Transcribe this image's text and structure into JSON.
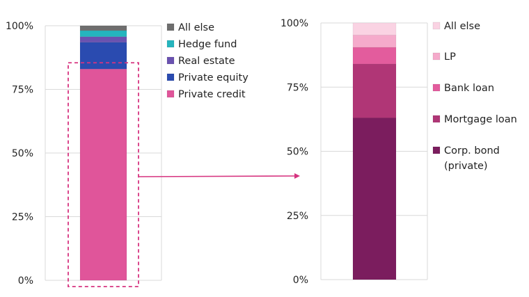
{
  "chart_data": [
    {
      "type": "bar",
      "stacked": true,
      "categories": [
        ""
      ],
      "ylim": [
        0,
        100
      ],
      "yticks": [
        0,
        25,
        50,
        75,
        100
      ],
      "ytick_labels": [
        "0%",
        "25%",
        "50%",
        "75%",
        "100%"
      ],
      "series": [
        {
          "name": "Private credit",
          "values": [
            83
          ],
          "color": "#e0559a"
        },
        {
          "name": "Private equity",
          "values": [
            10.5
          ],
          "color": "#2a4bb0"
        },
        {
          "name": "Real estate",
          "values": [
            2.2
          ],
          "color": "#6a52b0"
        },
        {
          "name": "Hedge fund",
          "values": [
            2.4
          ],
          "color": "#25b5be"
        },
        {
          "name": "All else",
          "values": [
            1.9
          ],
          "color": "#6e6e6e"
        }
      ],
      "legend_order": [
        "All else",
        "Hedge fund",
        "Real estate",
        "Private equity",
        "Private credit"
      ],
      "highlight": "Private credit",
      "legend": "right",
      "grid": true
    },
    {
      "type": "bar",
      "stacked": true,
      "categories": [
        ""
      ],
      "ylim": [
        0,
        100
      ],
      "yticks": [
        0,
        25,
        50,
        75,
        100
      ],
      "ytick_labels": [
        "0%",
        "25%",
        "50%",
        "75%",
        "100%"
      ],
      "series": [
        {
          "name": "Corp. bond (private)",
          "label_lines": [
            "Corp. bond",
            "(private)"
          ],
          "values": [
            63
          ],
          "color": "#7b1d5e"
        },
        {
          "name": "Mortgage loan",
          "label_lines": [
            "Mortgage loan"
          ],
          "values": [
            21
          ],
          "color": "#b03676"
        },
        {
          "name": "Bank loan",
          "label_lines": [
            "Bank loan"
          ],
          "values": [
            6.5
          ],
          "color": "#e35c9d"
        },
        {
          "name": "LP",
          "label_lines": [
            "LP"
          ],
          "values": [
            4.8
          ],
          "color": "#f5aacb"
        },
        {
          "name": "All else",
          "label_lines": [
            "All else"
          ],
          "values": [
            4.7
          ],
          "color": "#fad3e3"
        }
      ],
      "legend_order": [
        "All else",
        "LP",
        "Bank loan",
        "Mortgage loan",
        "Corp. bond (private)"
      ],
      "legend": "right",
      "grid": true
    }
  ],
  "colors": {
    "highlight_box": "#d6337f",
    "arrow": "#d6337f",
    "grid": "#d9d9d9",
    "axis_text": "#222222"
  }
}
